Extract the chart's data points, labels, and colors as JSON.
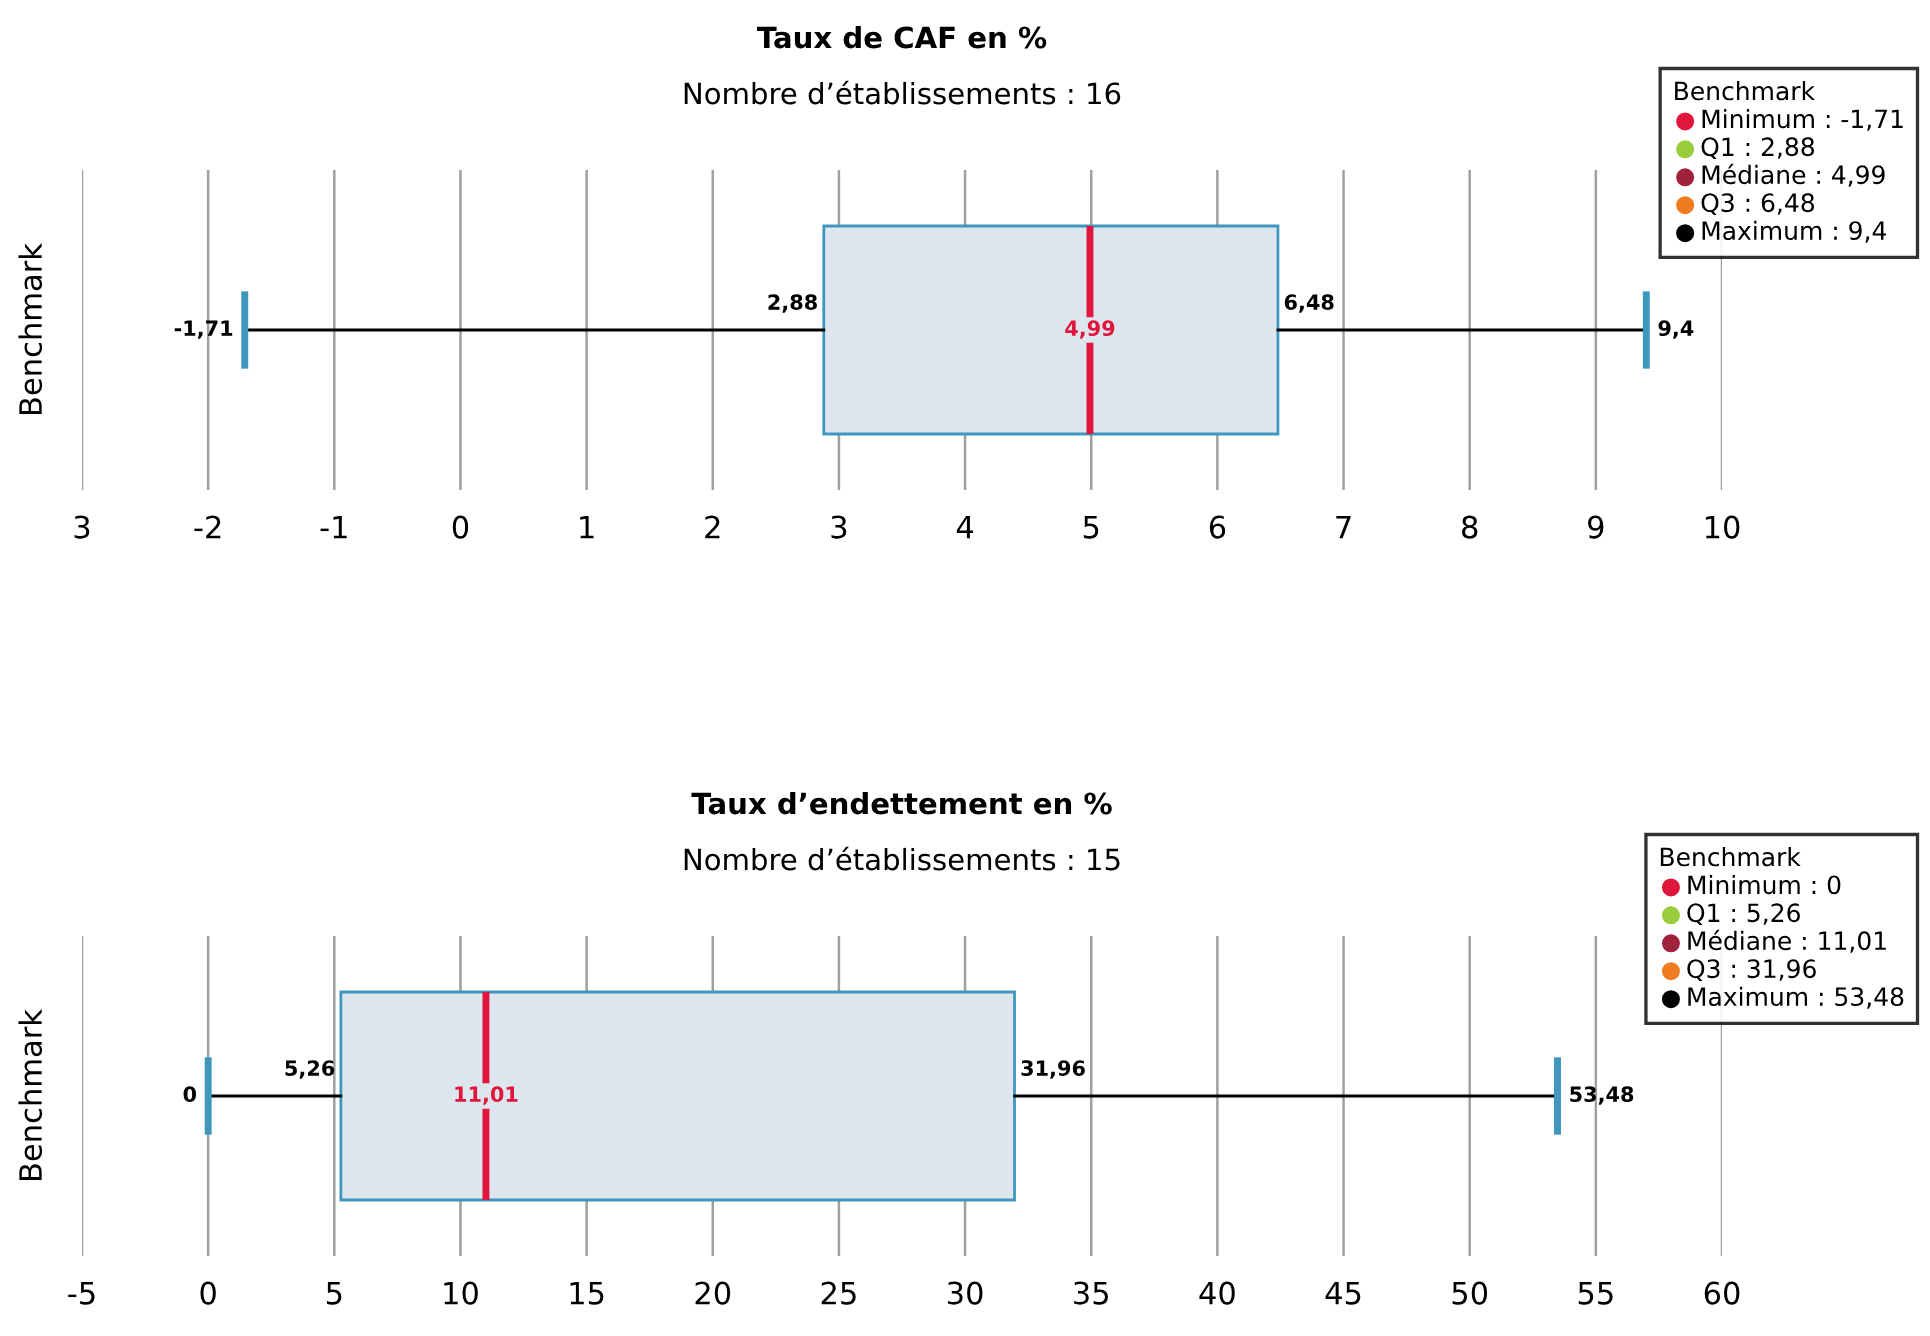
{
  "chart_data": [
    {
      "type": "box",
      "orientation": "horizontal",
      "title": "Taux de CAF en %",
      "subtitle": "Nombre d’établissements : 16",
      "ylabel": "Benchmark",
      "categories": [
        null
      ],
      "boxes": [
        {
          "low": -1.71,
          "q1": 2.88,
          "median": 4.99,
          "q3": 6.48,
          "high": 9.4
        }
      ],
      "color": "#dde6ef",
      "xlim": [
        -3,
        10
      ],
      "xticks": [
        {
          "value": -3,
          "label": "3"
        },
        -2,
        -1,
        0,
        1,
        2,
        3,
        4,
        5,
        6,
        7,
        8,
        9,
        10
      ],
      "grid": "x",
      "tick_labels": "x",
      "legend": "top right",
      "legend_title": "Benchmark",
      "annotations": [
        {
          "text": "-1,71",
          "x": -1.71
        },
        {
          "text": "2,88",
          "x": 2.88
        },
        {
          "text": "4,99",
          "x": 4.99
        },
        {
          "text": "6,48",
          "x": 6.48
        },
        {
          "text": "9,4",
          "x": 9.4
        }
      ],
      "series": [
        {
          "name": "Minimum : -1,71",
          "color": "#e0163c",
          "type": "scatter",
          "values": [
            null
          ]
        },
        {
          "name": "Q1 : 2,88",
          "color": "#9acd3c",
          "type": "scatter",
          "values": [
            null
          ]
        },
        {
          "name": "Médiane : 4,99",
          "color": "#a0213c",
          "type": "scatter",
          "values": [
            null
          ]
        },
        {
          "name": "Q3 : 6,48",
          "color": "#f07c22",
          "type": "scatter",
          "values": [
            null
          ]
        },
        {
          "name": "Maximum : 9,4",
          "color": "#000000",
          "type": "scatter",
          "values": [
            null
          ]
        }
      ]
    },
    {
      "type": "box",
      "orientation": "horizontal",
      "title": "Taux d’endettement en %",
      "subtitle": "Nombre d’établissements : 15",
      "ylabel": "Benchmark",
      "categories": [
        null
      ],
      "boxes": [
        {
          "low": 0,
          "q1": 5.26,
          "median": 11.01,
          "q3": 31.96,
          "high": 53.48
        }
      ],
      "color": "#dde6ef",
      "xlim": [
        -5,
        60
      ],
      "xticks": [
        -5,
        0,
        5,
        10,
        15,
        20,
        25,
        30,
        35,
        40,
        45,
        50,
        55,
        60
      ],
      "grid": "x",
      "tick_labels": "x",
      "legend": "top right",
      "legend_title": "Benchmark",
      "annotations": [
        {
          "text": "0",
          "x": 0
        },
        {
          "text": "5,26",
          "x": 5.26
        },
        {
          "text": "11,01",
          "x": 11.01
        },
        {
          "text": "31,96",
          "x": 31.96
        },
        {
          "text": "53,48",
          "x": 53.48
        }
      ],
      "series": [
        {
          "name": "Minimum : 0",
          "color": "#e0163c",
          "type": "scatter",
          "values": [
            null
          ]
        },
        {
          "name": "Q1 : 5,26",
          "color": "#9acd3c",
          "type": "scatter",
          "values": [
            null
          ]
        },
        {
          "name": "Médiane : 11,01",
          "color": "#a0213c",
          "type": "scatter",
          "values": [
            null
          ]
        },
        {
          "name": "Q3 : 31,96",
          "color": "#f07c22",
          "type": "scatter",
          "values": [
            null
          ]
        },
        {
          "name": "Maximum : 53,48",
          "color": "#000000",
          "type": "scatter",
          "values": [
            null
          ]
        }
      ]
    }
  ]
}
